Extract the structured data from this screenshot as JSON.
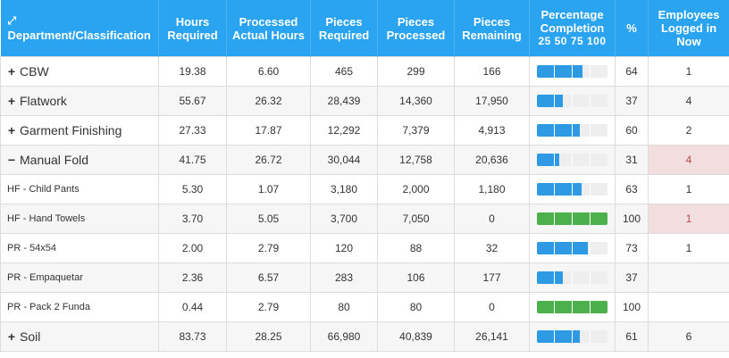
{
  "headers": {
    "expand_icon": "⤢",
    "department": "Department/Classification",
    "hours_required": "Hours Required",
    "processed_actual_hours": "Processed Actual Hours",
    "pieces_required": "Pieces Required",
    "pieces_processed": "Pieces Processed",
    "pieces_remaining": "Pieces Remaining",
    "percentage_completion": "Percentage Completion",
    "completion_scale": "25 50 75 100",
    "percent": "%",
    "employees_logged_in": "Employees Logged in Now"
  },
  "colors": {
    "header_bg": "#2aa3f0",
    "bar_blue": "#2e9ae4",
    "bar_green": "#4cb04c",
    "danger_bg": "#f2dede",
    "danger_text": "#b94a48"
  },
  "rows": [
    {
      "kind": "group",
      "toggle": "+",
      "name": "CBW",
      "hours_required": "19.38",
      "processed_actual_hours": "6.60",
      "pieces_required": "465",
      "pieces_processed": "299",
      "pieces_remaining": "166",
      "percent": "64",
      "percent_value": 64,
      "employees": "1",
      "employees_alert": false
    },
    {
      "kind": "group",
      "toggle": "+",
      "name": "Flatwork",
      "hours_required": "55.67",
      "processed_actual_hours": "26.32",
      "pieces_required": "28,439",
      "pieces_processed": "14,360",
      "pieces_remaining": "17,950",
      "percent": "37",
      "percent_value": 37,
      "employees": "4",
      "employees_alert": false
    },
    {
      "kind": "group",
      "toggle": "+",
      "name": "Garment Finishing",
      "hours_required": "27.33",
      "processed_actual_hours": "17.87",
      "pieces_required": "12,292",
      "pieces_processed": "7,379",
      "pieces_remaining": "4,913",
      "percent": "60",
      "percent_value": 60,
      "employees": "2",
      "employees_alert": false
    },
    {
      "kind": "group",
      "toggle": "−",
      "name": "Manual Fold",
      "hours_required": "41.75",
      "processed_actual_hours": "26.72",
      "pieces_required": "30,044",
      "pieces_processed": "12,758",
      "pieces_remaining": "20,636",
      "percent": "31",
      "percent_value": 31,
      "employees": "4",
      "employees_alert": true
    },
    {
      "kind": "sub",
      "toggle": "",
      "name": "HF - Child Pants",
      "hours_required": "5.30",
      "processed_actual_hours": "1.07",
      "pieces_required": "3,180",
      "pieces_processed": "2,000",
      "pieces_remaining": "1,180",
      "percent": "63",
      "percent_value": 63,
      "employees": "1",
      "employees_alert": false
    },
    {
      "kind": "sub",
      "toggle": "",
      "name": "HF - Hand Towels",
      "hours_required": "3.70",
      "processed_actual_hours": "5.05",
      "pieces_required": "3,700",
      "pieces_processed": "7,050",
      "pieces_remaining": "0",
      "percent": "100",
      "percent_value": 100,
      "employees": "1",
      "employees_alert": true
    },
    {
      "kind": "sub",
      "toggle": "",
      "name": "PR - 54x54",
      "hours_required": "2.00",
      "processed_actual_hours": "2.79",
      "pieces_required": "120",
      "pieces_processed": "88",
      "pieces_remaining": "32",
      "percent": "73",
      "percent_value": 73,
      "employees": "1",
      "employees_alert": false
    },
    {
      "kind": "sub",
      "toggle": "",
      "name": "PR - Empaquetar",
      "hours_required": "2.36",
      "processed_actual_hours": "6.57",
      "pieces_required": "283",
      "pieces_processed": "106",
      "pieces_remaining": "177",
      "percent": "37",
      "percent_value": 37,
      "employees": "",
      "employees_alert": false
    },
    {
      "kind": "sub",
      "toggle": "",
      "name": "PR - Pack 2 Funda",
      "hours_required": "0.44",
      "processed_actual_hours": "2.79",
      "pieces_required": "80",
      "pieces_processed": "80",
      "pieces_remaining": "0",
      "percent": "100",
      "percent_value": 100,
      "employees": "",
      "employees_alert": false
    },
    {
      "kind": "group",
      "toggle": "+",
      "name": "Soil",
      "hours_required": "83.73",
      "processed_actual_hours": "28.25",
      "pieces_required": "66,980",
      "pieces_processed": "40,839",
      "pieces_remaining": "26,141",
      "percent": "61",
      "percent_value": 61,
      "employees": "6",
      "employees_alert": false
    }
  ]
}
